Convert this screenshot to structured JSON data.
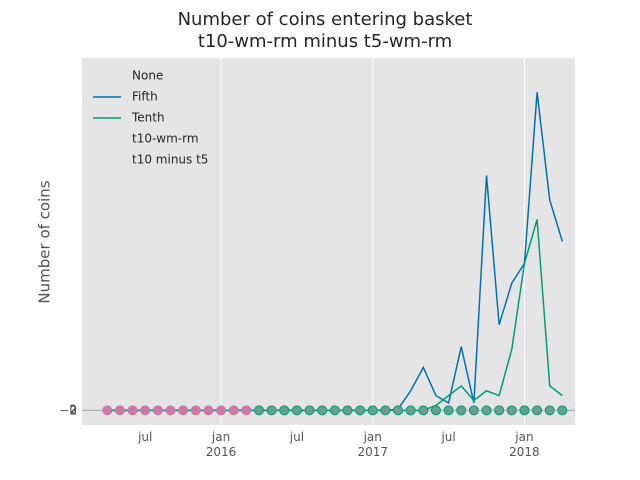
{
  "chart_data": {
    "type": "line",
    "title": [
      "Number of coins entering basket",
      "t10-wm-rm minus t5-wm-rm"
    ],
    "y_label": "Number of coins",
    "x": [
      "2015-04",
      "2015-05",
      "2015-06",
      "2015-07",
      "2015-08",
      "2015-09",
      "2015-10",
      "2015-11",
      "2015-12",
      "2016-01",
      "2016-02",
      "2016-03",
      "2016-04",
      "2016-05",
      "2016-06",
      "2016-07",
      "2016-08",
      "2016-09",
      "2016-10",
      "2016-11",
      "2016-12",
      "2017-01",
      "2017-02",
      "2017-03",
      "2017-04",
      "2017-05",
      "2017-06",
      "2017-07",
      "2017-08",
      "2017-09",
      "2017-10",
      "2017-11",
      "2017-12",
      "2018-01",
      "2018-02",
      "2018-03",
      "2018-04"
    ],
    "series": [
      {
        "name": "Fifth",
        "kind": "line",
        "color": "#0072b2",
        "values": [
          0,
          0,
          0,
          0,
          0,
          0,
          0,
          0,
          0,
          0,
          0,
          0,
          0,
          0,
          0,
          0,
          0,
          0,
          0,
          0,
          0,
          0,
          0,
          5,
          80,
          175,
          60,
          30,
          260,
          30,
          960,
          350,
          520,
          600,
          1300,
          860,
          690
        ]
      },
      {
        "name": "Tenth",
        "kind": "line",
        "color": "#009e73",
        "values": [
          0,
          0,
          0,
          0,
          0,
          0,
          0,
          0,
          0,
          0,
          0,
          0,
          0,
          0,
          0,
          0,
          0,
          0,
          0,
          0,
          0,
          0,
          0,
          0,
          0,
          0,
          20,
          60,
          100,
          40,
          80,
          60,
          250,
          600,
          780,
          100,
          60
        ]
      },
      {
        "name": "t10-wm-rm",
        "kind": "scatter",
        "color": "#cc79a7",
        "values": [
          0,
          0,
          0,
          0,
          0,
          0,
          0,
          0,
          0,
          0,
          0,
          0,
          null,
          null,
          null,
          null,
          null,
          null,
          null,
          null,
          null,
          null,
          null,
          null,
          null,
          null,
          null,
          null,
          null,
          null,
          null,
          null,
          null,
          null,
          null,
          null,
          null
        ]
      },
      {
        "name": "t10 minus t5",
        "kind": "scatter",
        "color": "#6a9e8f",
        "values": [
          null,
          null,
          null,
          null,
          null,
          null,
          null,
          null,
          null,
          null,
          null,
          null,
          0,
          0,
          0,
          0,
          0,
          0,
          0,
          0,
          0,
          0,
          0,
          0,
          0,
          0,
          0,
          0,
          0,
          0,
          0,
          0,
          0,
          0,
          0,
          0,
          0
        ]
      }
    ],
    "legend_title": "None",
    "legend": "upper left",
    "xlim": [
      "2015-02",
      "2018-05"
    ],
    "xticks": [
      {
        "value": "2016-01",
        "label": "jan\n2016"
      },
      {
        "value": "2017-01",
        "label": "jan\n2017"
      },
      {
        "value": "2018-01",
        "label": "jan\n2018"
      }
    ],
    "xticks_minor": [
      {
        "value": "2015-07",
        "label": "jul"
      },
      {
        "value": "2016-07",
        "label": "jul"
      },
      {
        "value": "2017-07",
        "label": "jul"
      }
    ],
    "ylim": [
      -60,
      1440
    ],
    "yticks": [
      {
        "value": -2,
        "label": "−2"
      },
      0,
      2
    ],
    "axhline": 0,
    "grid": true
  }
}
